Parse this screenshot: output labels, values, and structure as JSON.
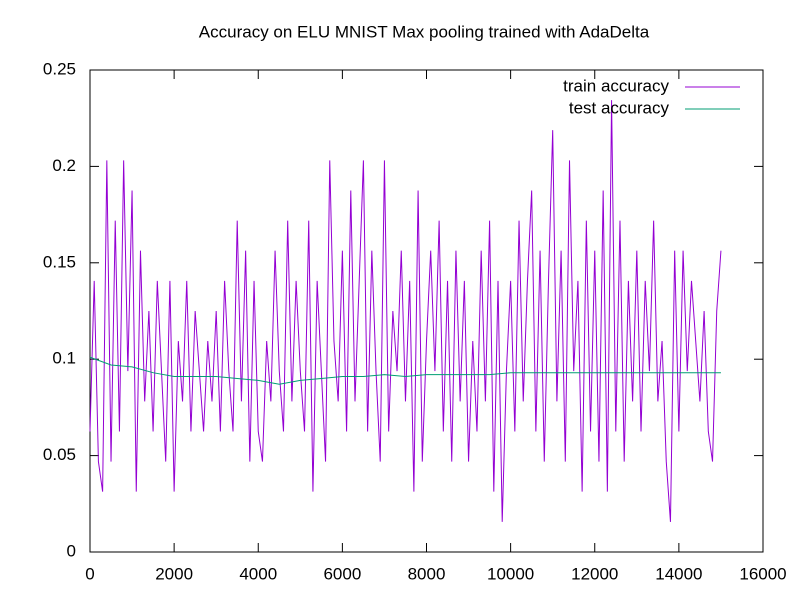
{
  "chart_data": {
    "type": "line",
    "title": "Accuracy on ELU MNIST Max pooling trained with AdaDelta",
    "xlim": [
      0,
      16000
    ],
    "xticks": [
      0,
      2000,
      4000,
      6000,
      8000,
      10000,
      12000,
      14000,
      16000
    ],
    "ylim": [
      0,
      0.25
    ],
    "yticks": [
      0,
      0.05,
      0.1,
      0.15,
      0.2,
      0.25
    ],
    "legend": "top-right",
    "series": [
      {
        "name": "train accuracy",
        "color": "#9400d3",
        "x": [
          0,
          100,
          200,
          300,
          400,
          500,
          600,
          700,
          800,
          900,
          1000,
          1100,
          1200,
          1300,
          1400,
          1500,
          1600,
          1700,
          1800,
          1900,
          2000,
          2100,
          2200,
          2300,
          2400,
          2500,
          2600,
          2700,
          2800,
          2900,
          3000,
          3100,
          3200,
          3300,
          3400,
          3500,
          3600,
          3700,
          3800,
          3900,
          4000,
          4100,
          4200,
          4300,
          4400,
          4500,
          4600,
          4700,
          4800,
          4900,
          5000,
          5100,
          5200,
          5300,
          5400,
          5500,
          5600,
          5700,
          5800,
          5900,
          6000,
          6100,
          6200,
          6300,
          6400,
          6500,
          6600,
          6700,
          6800,
          6900,
          7000,
          7100,
          7200,
          7300,
          7400,
          7500,
          7600,
          7700,
          7800,
          7900,
          8000,
          8100,
          8200,
          8300,
          8400,
          8500,
          8600,
          8700,
          8800,
          8900,
          9000,
          9100,
          9200,
          9300,
          9400,
          9500,
          9600,
          9700,
          9800,
          9900,
          10000,
          10100,
          10200,
          10300,
          10400,
          10500,
          10600,
          10700,
          10800,
          10900,
          11000,
          11100,
          11200,
          11300,
          11400,
          11500,
          11600,
          11700,
          11800,
          11900,
          12000,
          12100,
          12200,
          12300,
          12400,
          12500,
          12600,
          12700,
          12800,
          12900,
          13000,
          13100,
          13200,
          13300,
          13400,
          13500,
          13600,
          13700,
          13800,
          13900,
          14000,
          14100,
          14200,
          14300,
          14400,
          14500,
          14600,
          14700,
          14800,
          14900,
          15000
        ],
        "values": [
          0.0625,
          0.1406,
          0.0469,
          0.0313,
          0.2031,
          0.0469,
          0.1719,
          0.0625,
          0.2031,
          0.0938,
          0.1875,
          0.0313,
          0.1563,
          0.0781,
          0.125,
          0.0625,
          0.1406,
          0.0938,
          0.0469,
          0.1406,
          0.0313,
          0.1094,
          0.0781,
          0.1406,
          0.0625,
          0.125,
          0.0938,
          0.0625,
          0.1094,
          0.0781,
          0.125,
          0.0625,
          0.1406,
          0.0938,
          0.0625,
          0.1719,
          0.0781,
          0.1563,
          0.0469,
          0.1406,
          0.0625,
          0.0469,
          0.1094,
          0.0781,
          0.1563,
          0.0938,
          0.0625,
          0.1719,
          0.0781,
          0.1406,
          0.0938,
          0.0625,
          0.1719,
          0.0313,
          0.1406,
          0.0938,
          0.0469,
          0.2031,
          0.1094,
          0.0781,
          0.1563,
          0.0625,
          0.1875,
          0.0781,
          0.1406,
          0.2031,
          0.0625,
          0.1563,
          0.0938,
          0.0469,
          0.2031,
          0.0625,
          0.125,
          0.0938,
          0.1563,
          0.0781,
          0.1406,
          0.0313,
          0.1875,
          0.0469,
          0.1094,
          0.1563,
          0.0938,
          0.1719,
          0.0625,
          0.1406,
          0.0469,
          0.1563,
          0.0781,
          0.1406,
          0.0469,
          0.1094,
          0.0625,
          0.1563,
          0.0781,
          0.1719,
          0.0313,
          0.1406,
          0.0156,
          0.0938,
          0.1406,
          0.0625,
          0.1719,
          0.0781,
          0.1406,
          0.1875,
          0.0625,
          0.1563,
          0.0469,
          0.1406,
          0.2188,
          0.0781,
          0.1563,
          0.0469,
          0.2031,
          0.0938,
          0.1406,
          0.0313,
          0.1719,
          0.0625,
          0.1563,
          0.0469,
          0.1875,
          0.0313,
          0.2344,
          0.0625,
          0.1719,
          0.0469,
          0.1406,
          0.0781,
          0.1563,
          0.0625,
          0.1406,
          0.0938,
          0.1719,
          0.0781,
          0.1094,
          0.0469,
          0.0156,
          0.1563,
          0.0625,
          0.1563,
          0.0938,
          0.1406,
          0.1094,
          0.0781,
          0.125,
          0.0625,
          0.0469,
          0.125,
          0.1563
        ]
      },
      {
        "name": "test accuracy",
        "color": "#009e73",
        "x": [
          0,
          500,
          1000,
          1500,
          2000,
          2500,
          3000,
          3500,
          4000,
          4500,
          5000,
          5500,
          6000,
          6500,
          7000,
          7500,
          8000,
          8500,
          9000,
          9500,
          10000,
          10500,
          11000,
          11500,
          12000,
          12500,
          13000,
          13500,
          14000,
          14500,
          15000
        ],
        "values": [
          0.101,
          0.097,
          0.096,
          0.093,
          0.091,
          0.091,
          0.091,
          0.09,
          0.089,
          0.087,
          0.089,
          0.09,
          0.091,
          0.091,
          0.092,
          0.091,
          0.092,
          0.092,
          0.092,
          0.092,
          0.093,
          0.093,
          0.093,
          0.093,
          0.093,
          0.093,
          0.093,
          0.093,
          0.093,
          0.093,
          0.093
        ]
      }
    ]
  }
}
